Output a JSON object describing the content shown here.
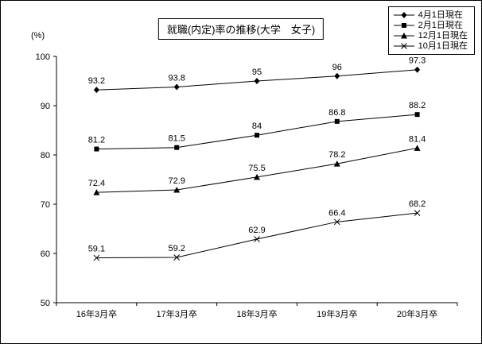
{
  "colors": {
    "line": "#000000",
    "background": "#ffffff",
    "border": "#000000"
  },
  "chart_data": {
    "type": "line",
    "title": "就職(内定)率の推移(大学　女子)",
    "ylabel": "(%)",
    "xlabel": "",
    "categories": [
      "16年3月卒",
      "17年3月卒",
      "18年3月卒",
      "19年3月卒",
      "20年3月卒"
    ],
    "series": [
      {
        "name": "4月1日現在",
        "marker": "diamond",
        "values": [
          93.2,
          93.8,
          95,
          96,
          97.3
        ]
      },
      {
        "name": "2月1日現在",
        "marker": "square",
        "values": [
          81.2,
          81.5,
          84,
          86.8,
          88.2
        ]
      },
      {
        "name": "12月1日現在",
        "marker": "triangle",
        "values": [
          72.4,
          72.9,
          75.5,
          78.2,
          81.4
        ]
      },
      {
        "name": "10月1日現在",
        "marker": "x",
        "values": [
          59.1,
          59.2,
          62.9,
          66.4,
          68.2
        ]
      }
    ],
    "ylim": [
      50,
      100
    ],
    "yticks": [
      50,
      60,
      70,
      80,
      90,
      100
    ],
    "grid": false,
    "legend_position": "top-right",
    "data_labels": true
  }
}
